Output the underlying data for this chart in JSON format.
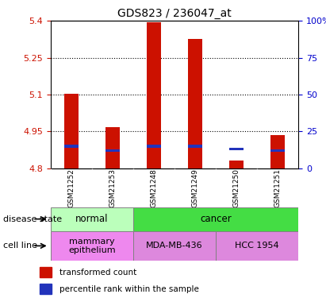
{
  "title": "GDS823 / 236047_at",
  "samples": [
    "GSM21252",
    "GSM21253",
    "GSM21248",
    "GSM21249",
    "GSM21250",
    "GSM21251"
  ],
  "transformed_counts": [
    5.105,
    4.968,
    5.393,
    5.328,
    4.832,
    4.935
  ],
  "percentile_ranks": [
    15,
    12,
    15,
    15,
    13,
    12
  ],
  "bar_bottom": 4.8,
  "ylim": [
    4.8,
    5.4
  ],
  "yticks_left": [
    4.8,
    4.95,
    5.1,
    5.25,
    5.4
  ],
  "yticks_right": [
    0,
    25,
    50,
    75,
    100
  ],
  "bar_color": "#cc1100",
  "percentile_color": "#2233bb",
  "disease_state": [
    {
      "label": "normal",
      "span": [
        0,
        2
      ],
      "color": "#bbffbb"
    },
    {
      "label": "cancer",
      "span": [
        2,
        6
      ],
      "color": "#44dd44"
    }
  ],
  "cell_line": [
    {
      "label": "mammary\nepithelium",
      "span": [
        0,
        2
      ],
      "color": "#ee88ee"
    },
    {
      "label": "MDA-MB-436",
      "span": [
        2,
        4
      ],
      "color": "#dd88dd"
    },
    {
      "label": "HCC 1954",
      "span": [
        4,
        6
      ],
      "color": "#dd88dd"
    }
  ],
  "row_label_disease": "disease state",
  "row_label_cell": "cell line",
  "legend_red": "transformed count",
  "legend_blue": "percentile rank within the sample",
  "background_color": "#ffffff",
  "plot_bg": "#ffffff",
  "tick_label_color_left": "#cc1100",
  "tick_label_color_right": "#0000cc",
  "sample_box_color": "#cccccc",
  "grid_ticks": [
    4.95,
    5.1,
    5.25
  ]
}
